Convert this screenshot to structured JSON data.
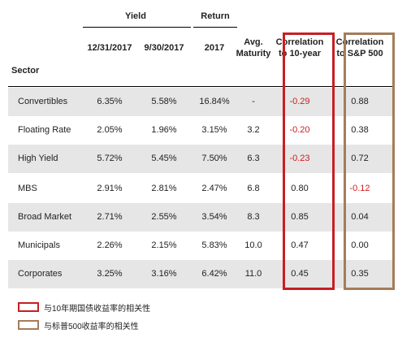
{
  "headers": {
    "group_yield": "Yield",
    "group_return": "Return",
    "sector": "Sector",
    "yield_date1": "12/31/2017",
    "yield_date2": "9/30/2017",
    "return_year": "2017",
    "maturity_line1": "Avg.",
    "maturity_line2": "Maturity",
    "corr10_line1": "Correlation",
    "corr10_line2": "to 10-year",
    "corrsp_line1": "Correlation",
    "corrsp_line2": "to S&P 500"
  },
  "rows": [
    {
      "sector": "Convertibles",
      "yield_1231": "6.35%",
      "yield_0930": "5.58%",
      "return_2017": "16.84%",
      "avg_maturity": "-",
      "corr_10yr": "-0.29",
      "corr_sp500": "0.88"
    },
    {
      "sector": "Floating Rate",
      "yield_1231": "2.05%",
      "yield_0930": "1.96%",
      "return_2017": "3.15%",
      "avg_maturity": "3.2",
      "corr_10yr": "-0.20",
      "corr_sp500": "0.38"
    },
    {
      "sector": "High Yield",
      "yield_1231": "5.72%",
      "yield_0930": "5.45%",
      "return_2017": "7.50%",
      "avg_maturity": "6.3",
      "corr_10yr": "-0.23",
      "corr_sp500": "0.72"
    },
    {
      "sector": "MBS",
      "yield_1231": "2.91%",
      "yield_0930": "2.81%",
      "return_2017": "2.47%",
      "avg_maturity": "6.8",
      "corr_10yr": "0.80",
      "corr_sp500": "-0.12"
    },
    {
      "sector": "Broad Market",
      "yield_1231": "2.71%",
      "yield_0930": "2.55%",
      "return_2017": "3.54%",
      "avg_maturity": "8.3",
      "corr_10yr": "0.85",
      "corr_sp500": "0.04"
    },
    {
      "sector": "Municipals",
      "yield_1231": "2.26%",
      "yield_0930": "2.15%",
      "return_2017": "5.83%",
      "avg_maturity": "10.0",
      "corr_10yr": "0.47",
      "corr_sp500": "0.00"
    },
    {
      "sector": "Corporates",
      "yield_1231": "3.25%",
      "yield_0930": "3.16%",
      "return_2017": "6.42%",
      "avg_maturity": "11.0",
      "corr_10yr": "0.45",
      "corr_sp500": "0.35"
    }
  ],
  "legend": {
    "red_label": "与10年期国债收益率的相关性",
    "brown_label": "与标普500收益率的相关性"
  },
  "colors": {
    "highlight_red": "#c81e24",
    "highlight_brown": "#a57c5a",
    "negative_text": "#d11d1d",
    "row_shade": "#e6e6e6"
  }
}
